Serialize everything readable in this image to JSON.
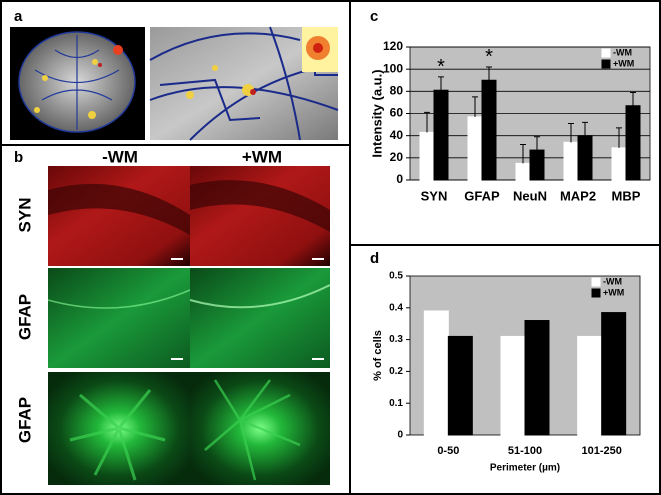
{
  "panel_labels": [
    "a",
    "b",
    "c",
    "d"
  ],
  "panel_b": {
    "columns": [
      "-WM",
      "+WM"
    ],
    "rows": [
      "SYN",
      "GFAP",
      "GFAP"
    ]
  },
  "chart_data": [
    {
      "type": "bar",
      "categories": [
        "SYN",
        "GFAP",
        "NeuN",
        "MAP2",
        "MBP"
      ],
      "series": [
        {
          "name": "-WM",
          "color": "#ffffff",
          "values": [
            43,
            57,
            15,
            34,
            29
          ],
          "errors": [
            18,
            18,
            17,
            17,
            18
          ]
        },
        {
          "name": "+WM",
          "color": "#000000",
          "values": [
            81,
            90,
            27,
            40,
            67
          ],
          "errors": [
            12,
            12,
            12,
            12,
            12
          ]
        }
      ],
      "ylabel": "Intensity (a.u.)",
      "ylim": [
        0,
        120
      ],
      "yticks": [
        0,
        20,
        40,
        60,
        80,
        100,
        120
      ],
      "grid": true,
      "background": "#c0c0c0",
      "legend": "upper right",
      "annotations": [
        "*",
        "*"
      ]
    },
    {
      "type": "bar",
      "categories": [
        "0-50",
        "51-100",
        "101-250"
      ],
      "series": [
        {
          "name": "-WM",
          "color": "#ffffff",
          "values": [
            0.39,
            0.31,
            0.31
          ]
        },
        {
          "name": "+WM",
          "color": "#000000",
          "values": [
            0.31,
            0.36,
            0.385
          ]
        }
      ],
      "xlabel": "Perimeter (µm)",
      "ylabel": "% of cells",
      "ylim": [
        0,
        0.5
      ],
      "yticks": [
        0,
        0.1,
        0.2,
        0.3,
        0.4,
        0.5
      ],
      "grid": false,
      "background": "#c0c0c0",
      "legend": "upper right"
    }
  ]
}
